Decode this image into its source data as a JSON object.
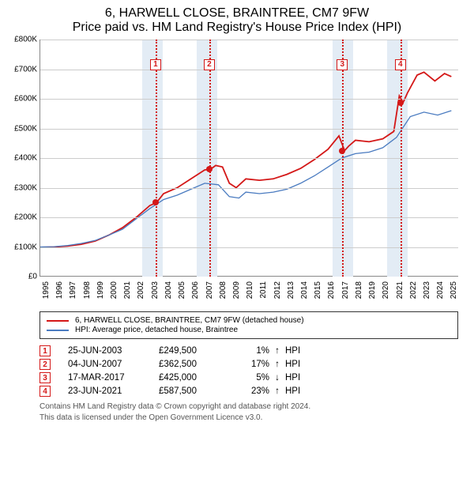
{
  "title": {
    "line1": "6, HARWELL CLOSE, BRAINTREE, CM7 9FW",
    "line2": "Price paid vs. HM Land Registry's House Price Index (HPI)"
  },
  "chart": {
    "type": "line",
    "ylim": [
      0,
      800000
    ],
    "ytick_step": 100000,
    "ylabels": [
      "£0",
      "£100K",
      "£200K",
      "£300K",
      "£400K",
      "£500K",
      "£600K",
      "£700K",
      "£800K"
    ],
    "xlim": [
      1995,
      2025.5
    ],
    "xticks": [
      1995,
      1996,
      1997,
      1998,
      1999,
      2000,
      2001,
      2002,
      2003,
      2004,
      2005,
      2006,
      2007,
      2008,
      2009,
      2010,
      2011,
      2012,
      2013,
      2014,
      2015,
      2016,
      2017,
      2018,
      2019,
      2020,
      2021,
      2022,
      2023,
      2024,
      2025
    ],
    "background_color": "#ffffff",
    "grid_color": "#cccccc",
    "axis_color": "#888888",
    "shade_color": "#e3ecf5",
    "shades": [
      [
        2002.5,
        2004.0
      ],
      [
        2006.5,
        2008.0
      ],
      [
        2016.5,
        2018.0
      ],
      [
        2020.5,
        2022.0
      ]
    ],
    "sale_lines_color": "#d41818",
    "sale_lines": [
      2003.48,
      2007.43,
      2017.21,
      2021.48
    ],
    "markers_top_y": 715000,
    "markers": [
      "1",
      "2",
      "3",
      "4"
    ],
    "series": [
      {
        "name": "property",
        "label": "6, HARWELL CLOSE, BRAINTREE, CM7 9FW (detached house)",
        "color": "#d41818",
        "line_width": 1.8,
        "points": [
          [
            1995.0,
            99000
          ],
          [
            1996.0,
            100000
          ],
          [
            1997.0,
            103000
          ],
          [
            1998.0,
            109000
          ],
          [
            1999.0,
            120000
          ],
          [
            2000.0,
            140000
          ],
          [
            2001.0,
            165000
          ],
          [
            2002.0,
            200000
          ],
          [
            2003.0,
            240000
          ],
          [
            2003.48,
            249500
          ],
          [
            2004.0,
            280000
          ],
          [
            2005.0,
            300000
          ],
          [
            2006.0,
            330000
          ],
          [
            2007.0,
            360000
          ],
          [
            2007.43,
            362500
          ],
          [
            2007.8,
            375000
          ],
          [
            2008.3,
            370000
          ],
          [
            2008.8,
            315000
          ],
          [
            2009.3,
            300000
          ],
          [
            2010.0,
            330000
          ],
          [
            2011.0,
            325000
          ],
          [
            2012.0,
            330000
          ],
          [
            2013.0,
            345000
          ],
          [
            2014.0,
            365000
          ],
          [
            2015.0,
            395000
          ],
          [
            2016.0,
            430000
          ],
          [
            2016.8,
            475000
          ],
          [
            2017.21,
            425000
          ],
          [
            2017.5,
            440000
          ],
          [
            2018.0,
            460000
          ],
          [
            2019.0,
            455000
          ],
          [
            2020.0,
            465000
          ],
          [
            2020.8,
            490000
          ],
          [
            2021.2,
            610000
          ],
          [
            2021.48,
            587500
          ],
          [
            2021.8,
            620000
          ],
          [
            2022.5,
            680000
          ],
          [
            2023.0,
            690000
          ],
          [
            2023.8,
            660000
          ],
          [
            2024.5,
            685000
          ],
          [
            2025.0,
            675000
          ]
        ],
        "sale_points": [
          [
            2003.48,
            249500
          ],
          [
            2007.43,
            362500
          ],
          [
            2017.21,
            425000
          ],
          [
            2021.48,
            587500
          ]
        ]
      },
      {
        "name": "hpi",
        "label": "HPI: Average price, detached house, Braintree",
        "color": "#4a7bc0",
        "line_width": 1.3,
        "points": [
          [
            1995.0,
            100000
          ],
          [
            1996.0,
            101000
          ],
          [
            1997.0,
            105000
          ],
          [
            1998.0,
            112000
          ],
          [
            1999.0,
            122000
          ],
          [
            2000.0,
            140000
          ],
          [
            2001.0,
            160000
          ],
          [
            2002.0,
            195000
          ],
          [
            2003.0,
            230000
          ],
          [
            2004.0,
            260000
          ],
          [
            2005.0,
            275000
          ],
          [
            2006.0,
            295000
          ],
          [
            2007.0,
            315000
          ],
          [
            2008.0,
            310000
          ],
          [
            2008.8,
            270000
          ],
          [
            2009.5,
            265000
          ],
          [
            2010.0,
            285000
          ],
          [
            2011.0,
            280000
          ],
          [
            2012.0,
            285000
          ],
          [
            2013.0,
            295000
          ],
          [
            2014.0,
            315000
          ],
          [
            2015.0,
            340000
          ],
          [
            2016.0,
            370000
          ],
          [
            2017.0,
            400000
          ],
          [
            2018.0,
            415000
          ],
          [
            2019.0,
            420000
          ],
          [
            2020.0,
            435000
          ],
          [
            2021.0,
            470000
          ],
          [
            2022.0,
            540000
          ],
          [
            2023.0,
            555000
          ],
          [
            2024.0,
            545000
          ],
          [
            2025.0,
            560000
          ]
        ]
      }
    ]
  },
  "legend": {
    "items": [
      {
        "key": "property"
      },
      {
        "key": "hpi"
      }
    ]
  },
  "sales": [
    {
      "n": "1",
      "date": "25-JUN-2003",
      "price": "£249,500",
      "pct": "1%",
      "arrow": "↑",
      "suffix": "HPI"
    },
    {
      "n": "2",
      "date": "04-JUN-2007",
      "price": "£362,500",
      "pct": "17%",
      "arrow": "↑",
      "suffix": "HPI"
    },
    {
      "n": "3",
      "date": "17-MAR-2017",
      "price": "£425,000",
      "pct": "5%",
      "arrow": "↓",
      "suffix": "HPI"
    },
    {
      "n": "4",
      "date": "23-JUN-2021",
      "price": "£587,500",
      "pct": "23%",
      "arrow": "↑",
      "suffix": "HPI"
    }
  ],
  "attribution": {
    "line1": "Contains HM Land Registry data © Crown copyright and database right 2024.",
    "line2": "This data is licensed under the Open Government Licence v3.0."
  }
}
